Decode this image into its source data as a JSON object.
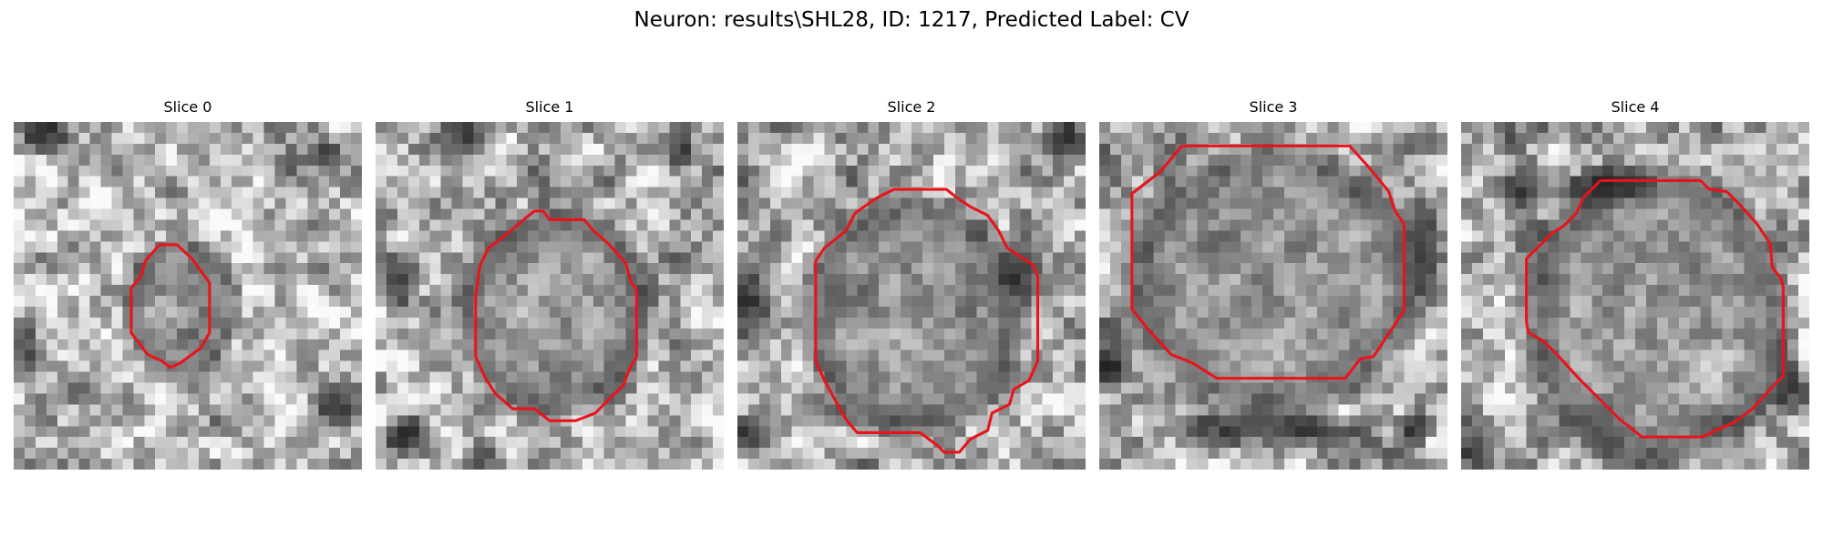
{
  "figure": {
    "title": "Neuron: results\\SHL28, ID: 1217, Predicted Label: CV",
    "contour_color": "#e8141c"
  },
  "panels": [
    {
      "title": "Slice 0"
    },
    {
      "title": "Slice 1"
    },
    {
      "title": "Slice 2"
    },
    {
      "title": "Slice 3"
    },
    {
      "title": "Slice 4"
    }
  ]
}
